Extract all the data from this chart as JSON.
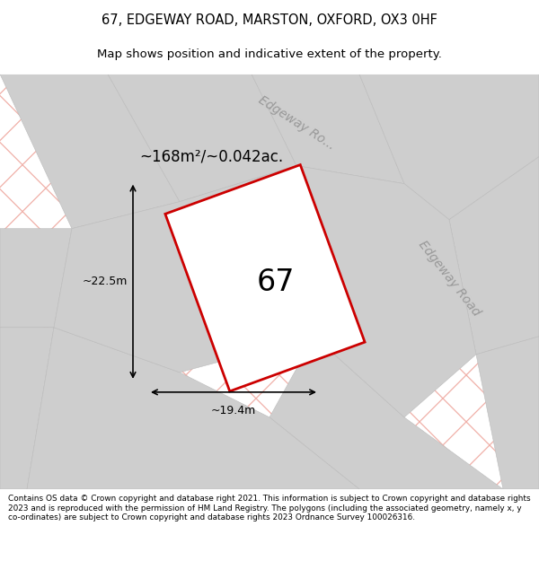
{
  "title_line1": "67, EDGEWAY ROAD, MARSTON, OXFORD, OX3 0HF",
  "title_line2": "Map shows position and indicative extent of the property.",
  "footer_text": "Contains OS data © Crown copyright and database right 2021. This information is subject to Crown copyright and database rights 2023 and is reproduced with the permission of HM Land Registry. The polygons (including the associated geometry, namely x, y co-ordinates) are subject to Crown copyright and database rights 2023 Ordnance Survey 100026316.",
  "bg_color": "#f0f0f0",
  "map_bg_color": "#e2e2e2",
  "road_stripe_color": "#f0b0a8",
  "property_fill": "#ffffff",
  "property_edge_color": "#cc0000",
  "property_label": "67",
  "area_text": "~168m²/~0.042ac.",
  "dim_width_text": "~19.4m",
  "dim_height_text": "~22.5m",
  "road_label_top": "Edgeway Ro...",
  "road_label_right": "Edgeway Road"
}
